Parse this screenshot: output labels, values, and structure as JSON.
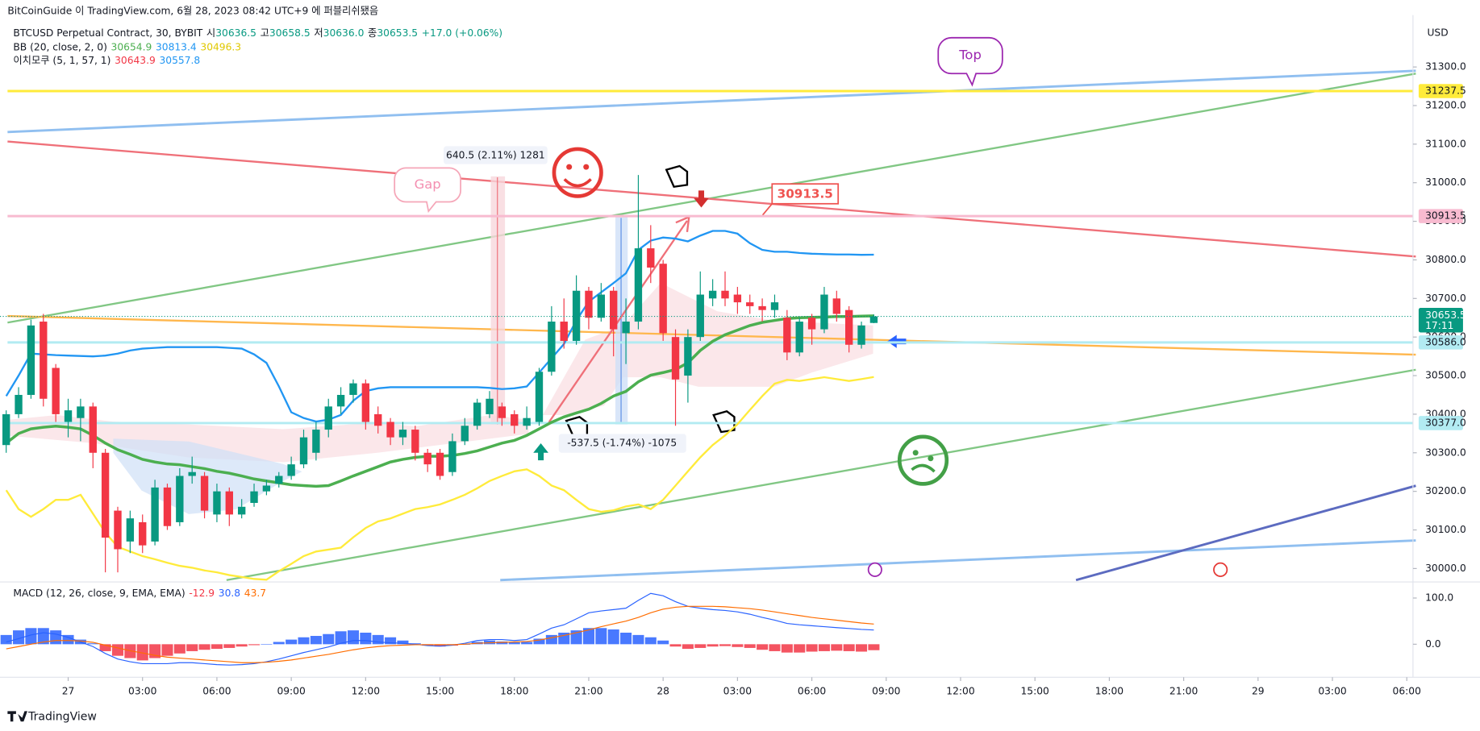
{
  "header": {
    "text": "BitCoinGuide 이 TradingView.com, 6월 28, 2023 08:42 UTC+9 에 퍼블리쉬됐음"
  },
  "footer": {
    "brand": "TradingView"
  },
  "chart_data": {
    "type": "candlestick",
    "title": "BTCUSD Perpetual Contract, 30, BYBIT",
    "ohlc_labels": [
      "시",
      "고",
      "저",
      "종"
    ],
    "ohlc_readout": [
      "30636.5",
      "30658.5",
      "30636.0",
      "30653.5"
    ],
    "change": "+17.0 (+0.06%)",
    "currency": "USD",
    "up_color": "#089981",
    "down_color": "#f23645",
    "xlim": [
      -0.5,
      113.5
    ],
    "xticks": [
      {
        "value": 5,
        "label": "27"
      },
      {
        "value": 11,
        "label": "03:00"
      },
      {
        "value": 17,
        "label": "06:00"
      },
      {
        "value": 23,
        "label": "09:00"
      },
      {
        "value": 29,
        "label": "12:00"
      },
      {
        "value": 35,
        "label": "15:00"
      },
      {
        "value": 41,
        "label": "18:00"
      },
      {
        "value": 47,
        "label": "21:00"
      },
      {
        "value": 53,
        "label": "28"
      },
      {
        "value": 59,
        "label": "03:00"
      },
      {
        "value": 65,
        "label": "06:00"
      },
      {
        "value": 71,
        "label": "09:00"
      },
      {
        "value": 77,
        "label": "12:00"
      },
      {
        "value": 83,
        "label": "15:00"
      },
      {
        "value": 89,
        "label": "18:00"
      },
      {
        "value": 95,
        "label": "21:00"
      },
      {
        "value": 101,
        "label": "29"
      },
      {
        "value": 107,
        "label": "03:00"
      },
      {
        "value": 113,
        "label": "06:00"
      }
    ],
    "ylim": [
      29970,
      31434.5
    ],
    "yticks": [
      {
        "value": 30000,
        "label": "30000.0"
      },
      {
        "value": 30100,
        "label": "30100.0"
      },
      {
        "value": 30200,
        "label": "30200.0"
      },
      {
        "value": 30300,
        "label": "30300.0"
      },
      {
        "value": 30400,
        "label": "30400.0"
      },
      {
        "value": 30500,
        "label": "30500.0"
      },
      {
        "value": 30600,
        "label": "30600.0"
      },
      {
        "value": 30700,
        "label": "30700.0"
      },
      {
        "value": 30800,
        "label": "30800.0"
      },
      {
        "value": 30900,
        "label": "30900.0"
      },
      {
        "value": 31000,
        "label": "31000.0"
      },
      {
        "value": 31100,
        "label": "31100.0"
      },
      {
        "value": 31200,
        "label": "31200.0"
      },
      {
        "value": 31300,
        "label": "31300.0"
      }
    ],
    "candles": {
      "open": [
        30320,
        30400,
        30450,
        30640,
        30520,
        30380,
        30390,
        30420,
        30300,
        30150,
        30070,
        30120,
        30070,
        30210,
        30120,
        30240,
        30240,
        30140,
        30200,
        30140,
        30170,
        30200,
        30220,
        30240,
        30270,
        30300,
        30360,
        30420,
        30450,
        30480,
        30400,
        30380,
        30340,
        30360,
        30300,
        30300,
        30250,
        30330,
        30370,
        30400,
        30420,
        30400,
        30370,
        30380,
        30510,
        30640,
        30590,
        30720,
        30650,
        30720,
        30610,
        30640,
        30830,
        30790,
        30600,
        30500,
        30600,
        30700,
        30720,
        30710,
        30690,
        30680,
        30670,
        30650,
        30560,
        30650,
        30620,
        30700,
        30670,
        30580,
        30636.5
      ],
      "high": [
        30410,
        30470,
        30645,
        30660,
        30530,
        30440,
        30440,
        30430,
        30310,
        30160,
        30150,
        30140,
        30230,
        30220,
        30260,
        30290,
        30250,
        30220,
        30210,
        30180,
        30220,
        30230,
        30250,
        30290,
        30360,
        30380,
        30440,
        30470,
        30490,
        30490,
        30420,
        30390,
        30380,
        30370,
        30310,
        30310,
        30350,
        30390,
        30440,
        30460,
        30430,
        30410,
        30420,
        30520,
        30680,
        30700,
        30760,
        30730,
        30740,
        30730,
        30700,
        31020,
        30890,
        30800,
        30620,
        30620,
        30770,
        30750,
        30770,
        30730,
        30710,
        30700,
        30710,
        30670,
        30650,
        30660,
        30730,
        30720,
        30680,
        30640,
        30658.5
      ],
      "low": [
        30300,
        30390,
        30440,
        30420,
        30380,
        30340,
        30330,
        30260,
        29990,
        29990,
        30040,
        30040,
        30060,
        30100,
        30110,
        30220,
        30130,
        30120,
        30110,
        30130,
        30160,
        30190,
        30210,
        30230,
        30260,
        30280,
        30340,
        30400,
        30430,
        30360,
        30350,
        30320,
        30320,
        30280,
        30250,
        30230,
        30240,
        30320,
        30360,
        30390,
        30370,
        30350,
        30360,
        30370,
        30500,
        30570,
        30580,
        30620,
        30640,
        30550,
        30530,
        30620,
        30740,
        30590,
        30370,
        30430,
        30590,
        30680,
        30680,
        30660,
        30660,
        30640,
        30650,
        30540,
        30550,
        30580,
        30610,
        30640,
        30560,
        30570,
        30636
      ],
      "close": [
        30400,
        30450,
        30630,
        30440,
        30400,
        30410,
        30420,
        30300,
        30080,
        30050,
        30130,
        30060,
        30210,
        30110,
        30240,
        30250,
        30150,
        30200,
        30140,
        30160,
        30200,
        30215,
        30240,
        30270,
        30340,
        30360,
        30420,
        30450,
        30480,
        30380,
        30370,
        30340,
        30360,
        30300,
        30270,
        30240,
        30330,
        30370,
        30430,
        30440,
        30390,
        30370,
        30390,
        30510,
        30640,
        30590,
        30720,
        30650,
        30710,
        30620,
        30640,
        30830,
        30780,
        30610,
        30490,
        30600,
        30710,
        30720,
        30700,
        30690,
        30680,
        30670,
        30690,
        30560,
        30640,
        30620,
        30710,
        30660,
        30580,
        30630,
        30653.5
      ]
    },
    "bb": {
      "label": "BB (20, close, 2, 0)",
      "lines": [
        {
          "color": "#4caf50",
          "width": 3,
          "readout": "30654.9",
          "values": [
            30325,
            30350,
            30362,
            30366,
            30369,
            30366,
            30362,
            30345,
            30325,
            30308,
            30296,
            30283,
            30276,
            30271,
            30269,
            30264,
            30259,
            30252,
            30247,
            30240,
            30232,
            30227,
            30222,
            30217,
            30215,
            30213,
            30215,
            30227,
            30240,
            30252,
            30264,
            30276,
            30283,
            30288,
            30291,
            30291,
            30293,
            30298,
            30305,
            30315,
            30325,
            30332,
            30345,
            30362,
            30379,
            30393,
            30403,
            30413,
            30428,
            30447,
            30459,
            30484,
            30501,
            30508,
            30516,
            30533,
            30565,
            30589,
            30606,
            30618,
            30630,
            30638,
            30643,
            30648,
            30650,
            30651,
            30652,
            30653,
            30653,
            30654,
            30654.9
          ]
        },
        {
          "color": "#2196f3",
          "width": 2,
          "readout": "30813.4",
          "values": [
            30447,
            30500,
            30557,
            30555,
            30553,
            30552,
            30551,
            30550,
            30552,
            30557,
            30565,
            30570,
            30572,
            30574,
            30574,
            30574,
            30574,
            30574,
            30572,
            30570,
            30555,
            30533,
            30472,
            30405,
            30390,
            30381,
            30386,
            30398,
            30435,
            30460,
            30467,
            30470,
            30470,
            30470,
            30470,
            30470,
            30470,
            30470,
            30470,
            30468,
            30465,
            30467,
            30472,
            30508,
            30545,
            30582,
            30643,
            30692,
            30716,
            30740,
            30765,
            30826,
            30850,
            30858,
            30855,
            30848,
            30863,
            30875,
            30875,
            30868,
            30843,
            30826,
            30821,
            30821,
            30818,
            30816,
            30815,
            30814,
            30814,
            30813,
            30813.4
          ]
        },
        {
          "color": "#ffeb3b",
          "width": 2,
          "readout": "30496.3",
          "values": [
            30203,
            30154,
            30134,
            30154,
            30178,
            30178,
            30191,
            30142,
            30093,
            30056,
            30044,
            30032,
            30024,
            30015,
            30007,
            30002,
            29995,
            29990,
            29983,
            29978,
            29973,
            29971,
            29993,
            30012,
            30032,
            30044,
            30049,
            30054,
            30081,
            30105,
            30122,
            30130,
            30142,
            30154,
            30159,
            30166,
            30178,
            30191,
            30208,
            30227,
            30240,
            30252,
            30257,
            30240,
            30215,
            30203,
            30178,
            30154,
            30147,
            30151,
            30161,
            30166,
            30154,
            30178,
            30215,
            30252,
            30288,
            30320,
            30345,
            30374,
            30411,
            30447,
            30479,
            30489,
            30486,
            30491,
            30496,
            30491,
            30486,
            30491,
            30496.3
          ]
        }
      ]
    },
    "ichimoku": {
      "label": "이치모쿠 (5, 1, 57, 1)",
      "readouts": [
        {
          "text": "30643.9",
          "color": "#f23645"
        },
        {
          "text": "30557.8",
          "color": "#2196f3"
        }
      ]
    },
    "price_lines": [
      {
        "value": 31237.5,
        "label": "31237.5",
        "color": "#ffeb3b",
        "text_color": "#131722"
      },
      {
        "value": 30913.5,
        "label": "30913.5",
        "color": "#f8bbd0",
        "text_color": "#131722"
      },
      {
        "value": 30586,
        "label": "30586.0",
        "color": "#b2ebf2",
        "text_color": "#131722"
      },
      {
        "value": 30377,
        "label": "30377.0",
        "color": "#b2ebf2",
        "text_color": "#131722"
      }
    ],
    "current_price": {
      "value": 30653.5,
      "label": "30653.5",
      "countdown": "17:11",
      "color": "#089981"
    },
    "macd": {
      "label": "MACD (12, 26, close, 9, EMA, EMA)",
      "readouts": [
        {
          "text": "-12.9",
          "color": "#f23645"
        },
        {
          "text": "30.8",
          "color": "#2962ff"
        },
        {
          "text": "43.7",
          "color": "#ff6d00"
        }
      ],
      "ylim": [
        -65.3,
        128.6
      ],
      "yticks": [
        {
          "value": 100,
          "label": "100.0"
        },
        {
          "value": 0,
          "label": "0.0"
        }
      ],
      "up_color": "#2962ff",
      "down_color": "#f23645",
      "histogram": [
        20,
        30,
        35,
        35,
        30,
        20,
        10,
        2,
        -15,
        -25,
        -30,
        -35,
        -30,
        -25,
        -20,
        -15,
        -12,
        -10,
        -8,
        -5,
        -2,
        0,
        5,
        10,
        15,
        18,
        22,
        28,
        30,
        25,
        20,
        15,
        8,
        2,
        -3,
        -5,
        -3,
        0,
        5,
        8,
        6,
        4,
        5,
        12,
        20,
        25,
        30,
        35,
        35,
        32,
        25,
        20,
        15,
        8,
        -5,
        -10,
        -8,
        -5,
        -4,
        -6,
        -8,
        -12,
        -15,
        -18,
        -18,
        -16,
        -15,
        -14,
        -15,
        -16,
        -12.9
      ],
      "macd_line": {
        "color": "#2962ff",
        "values": [
          5,
          12,
          20,
          25,
          22,
          15,
          5,
          -5,
          -20,
          -32,
          -38,
          -42,
          -42,
          -42,
          -40,
          -40,
          -42,
          -44,
          -45,
          -44,
          -42,
          -38,
          -32,
          -25,
          -18,
          -12,
          -6,
          2,
          8,
          8,
          5,
          3,
          2,
          0,
          -3,
          -4,
          -2,
          2,
          8,
          10,
          10,
          8,
          10,
          22,
          35,
          42,
          55,
          68,
          72,
          75,
          78,
          95,
          110,
          105,
          92,
          82,
          78,
          75,
          73,
          70,
          65,
          58,
          52,
          45,
          42,
          40,
          38,
          36,
          34,
          32,
          30.8
        ]
      },
      "signal_line": {
        "color": "#ff6d00",
        "values": [
          -10,
          -5,
          0,
          5,
          8,
          8,
          7,
          4,
          -2,
          -8,
          -14,
          -19,
          -24,
          -28,
          -30,
          -32,
          -34,
          -36,
          -38,
          -40,
          -40,
          -39,
          -37,
          -34,
          -30,
          -26,
          -22,
          -17,
          -12,
          -8,
          -5,
          -3,
          -2,
          -1,
          -1,
          -1,
          -1,
          0,
          2,
          3,
          4,
          5,
          6,
          9,
          14,
          19,
          25,
          31,
          38,
          44,
          50,
          58,
          68,
          76,
          80,
          82,
          82,
          82,
          81,
          79,
          77,
          74,
          70,
          66,
          62,
          58,
          55,
          52,
          49,
          46,
          43.7
        ]
      }
    },
    "annotations": {
      "measure_up": "640.5 (2.11%) 1281",
      "measure_down": "-537.5 (-1.74%) -1075",
      "gap": "Gap",
      "top": "Top",
      "price_label": "30913.5"
    }
  }
}
